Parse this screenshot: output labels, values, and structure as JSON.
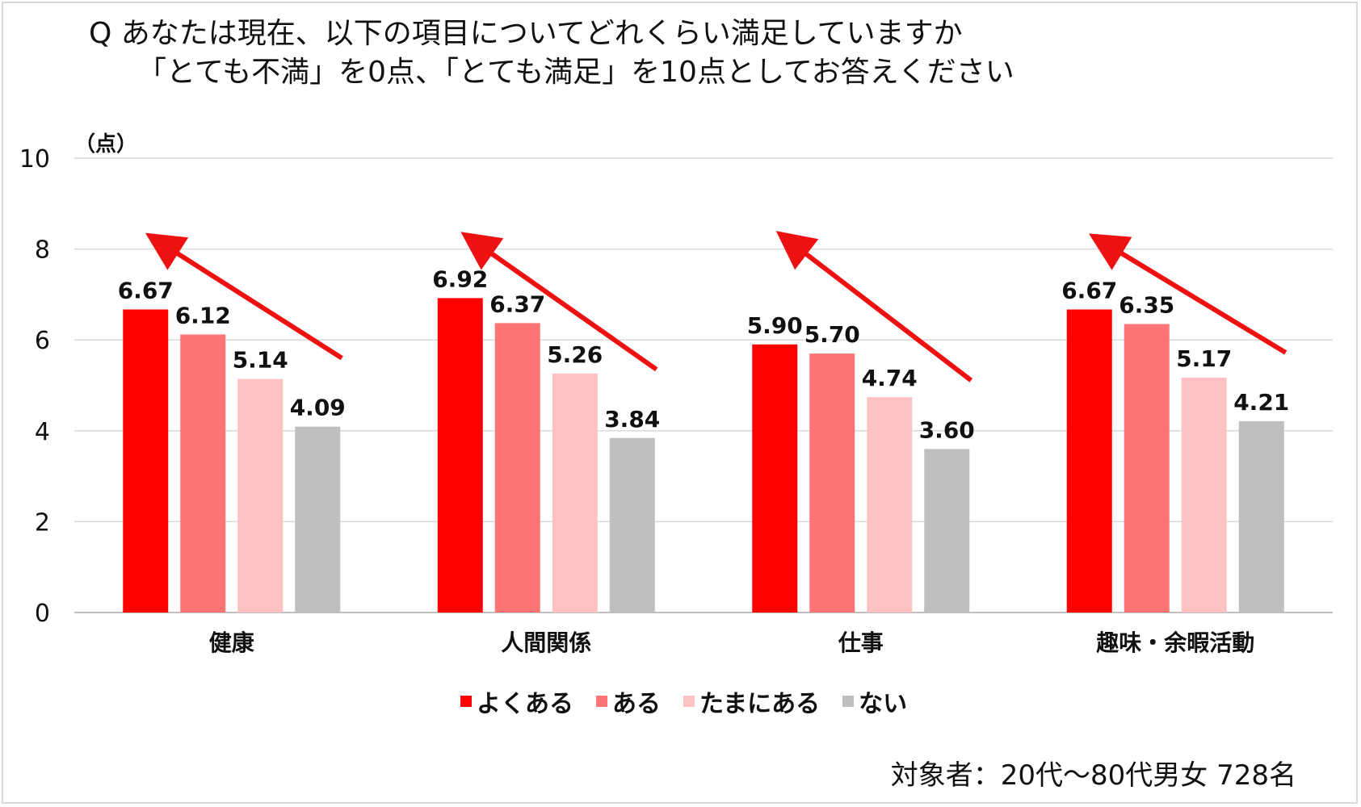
{
  "title": {
    "line1": "Q あなたは現在、以下の項目についてどれくらい満足していますか",
    "line2": "「とても不満」を0点、「とても満足」を10点としてお答えください"
  },
  "note": "対象者：20代～80代男女 728名",
  "chart_data": {
    "type": "bar",
    "ylabel": "（点）",
    "ylim": [
      0,
      10
    ],
    "yticks": [
      "0",
      "2",
      "4",
      "6",
      "8",
      "10"
    ],
    "categories": [
      "健康",
      "人間関係",
      "仕事",
      "趣味・余暇活動"
    ],
    "series": [
      {
        "name": "よくある",
        "color": "#ff0000",
        "values": [
          6.67,
          6.92,
          5.9,
          6.67
        ],
        "labels": [
          "6.67",
          "6.92",
          "5.90",
          "6.67"
        ]
      },
      {
        "name": "ある",
        "color": "#ff7575",
        "values": [
          6.12,
          6.37,
          5.7,
          6.35
        ],
        "labels": [
          "6.12",
          "6.37",
          "5.70",
          "6.35"
        ]
      },
      {
        "name": "たまにある",
        "color": "#ffc2c2",
        "values": [
          5.14,
          5.26,
          4.74,
          5.17
        ],
        "labels": [
          "5.14",
          "5.26",
          "4.74",
          "5.17"
        ]
      },
      {
        "name": "ない",
        "color": "#bfbfbf",
        "values": [
          4.09,
          3.84,
          3.6,
          4.21
        ],
        "labels": [
          "4.09",
          "3.84",
          "3.60",
          "4.21"
        ]
      }
    ],
    "arrow_color": "#ee1111",
    "legend": "bottom",
    "grid": true
  }
}
